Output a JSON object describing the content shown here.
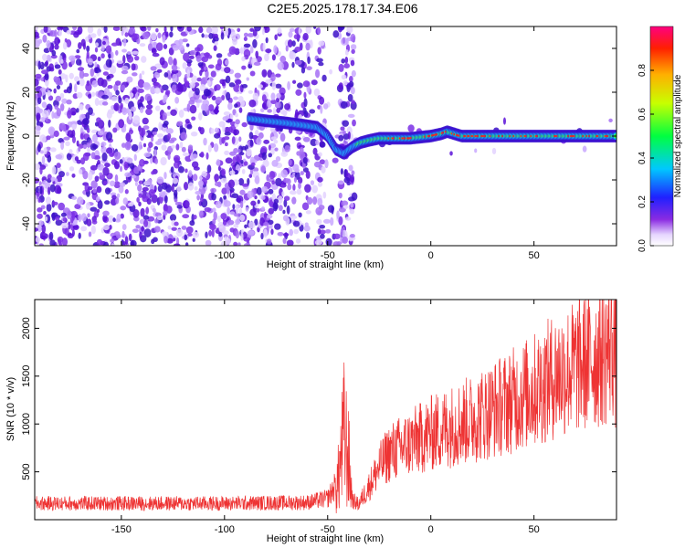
{
  "title": "C2E5.2025.178.17.34.E06",
  "chart_data": [
    {
      "type": "heatmap",
      "xlabel": "Height of straight line (km)",
      "ylabel": "Frequency (Hz)",
      "xlim": [
        -192,
        90
      ],
      "ylim": [
        -50,
        50
      ],
      "xticks": [
        -150,
        -100,
        -50,
        0,
        50
      ],
      "yticks": [
        -40,
        -20,
        0,
        20,
        40
      ],
      "colorbar": {
        "label": "Normalized spectral amplitude",
        "range": [
          0,
          1
        ],
        "ticks": [
          0.0,
          0.2,
          0.4,
          0.6,
          0.8
        ]
      },
      "ridge": {
        "x": [
          -88,
          -80,
          -70,
          -62,
          -55,
          -50,
          -46,
          -42,
          -38,
          -34,
          -30,
          -25,
          -20,
          -10,
          0,
          5,
          8,
          15,
          30,
          50,
          70,
          90
        ],
        "freq": [
          8,
          7,
          6,
          5,
          4,
          0,
          -6,
          -8,
          -5,
          -3,
          -2,
          -1,
          -1,
          -1,
          0,
          1,
          2,
          0,
          0,
          0,
          0,
          0
        ]
      }
    },
    {
      "type": "line",
      "xlabel": "Height of straight line (km)",
      "ylabel": "SNR (10 * v/v)",
      "xlim": [
        -192,
        90
      ],
      "ylim": [
        0,
        2300
      ],
      "xticks": [
        -150,
        -100,
        -50,
        0,
        50
      ],
      "yticks": [
        500,
        1000,
        1500,
        2000
      ],
      "color": "#ee3333",
      "envelope": {
        "x": [
          -192,
          -150,
          -100,
          -60,
          -50,
          -45,
          -42,
          -40,
          -38,
          -35,
          -30,
          -25,
          -20,
          -10,
          0,
          10,
          20,
          30,
          40,
          50,
          60,
          70,
          80,
          85,
          88,
          90
        ],
        "y": [
          170,
          170,
          170,
          180,
          220,
          400,
          900,
          650,
          200,
          160,
          350,
          550,
          700,
          800,
          900,
          980,
          1050,
          1150,
          1250,
          1350,
          1500,
          1600,
          1700,
          1750,
          1900,
          1600
        ]
      }
    }
  ]
}
